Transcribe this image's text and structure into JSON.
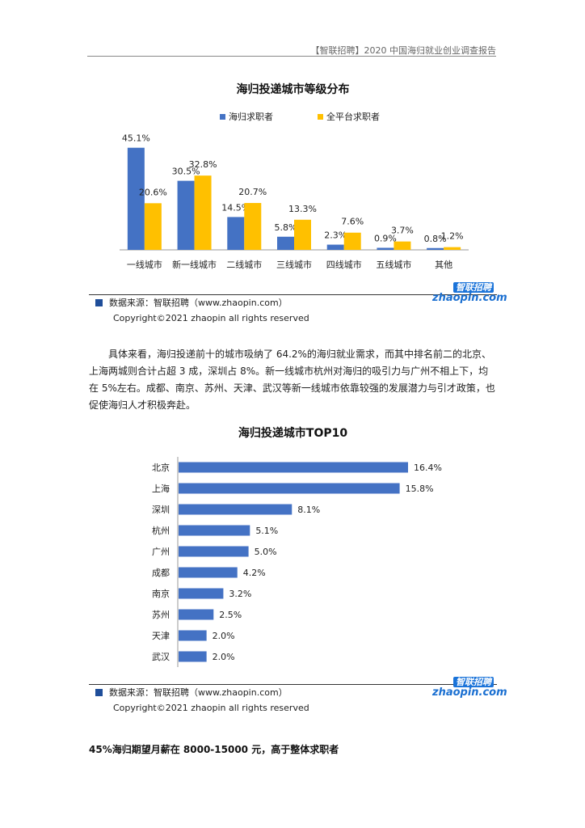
{
  "header": {
    "text": "【智联招聘】2020 中国海归就业创业调查报告"
  },
  "colors": {
    "blue": "#4472c4",
    "yellow": "#ffc000",
    "source_square": "#1f4e9a",
    "logo_blue": "#1a6fd1"
  },
  "chart_data": [
    {
      "type": "bar",
      "title": "海归投递城市等级分布",
      "categories": [
        "一线城市",
        "新一线城市",
        "二线城市",
        "三线城市",
        "四线城市",
        "五线城市",
        "其他"
      ],
      "series": [
        {
          "name": "海归求职者",
          "values": [
            45.1,
            30.5,
            14.5,
            5.8,
            2.3,
            0.9,
            0.8
          ],
          "labels": [
            "45.1%",
            "30.5%",
            "14.5%",
            "5.8%",
            "2.3%",
            "0.9%",
            "0.8%"
          ],
          "color": "#4472c4"
        },
        {
          "name": "全平台求职者",
          "values": [
            20.6,
            32.8,
            20.7,
            13.3,
            7.6,
            3.7,
            1.2
          ],
          "labels": [
            "20.6%",
            "32.8%",
            "20.7%",
            "13.3%",
            "7.6%",
            "3.7%",
            "1.2%"
          ],
          "color": "#ffc000"
        }
      ],
      "legend": "top",
      "ylim": [
        0,
        50
      ],
      "grid": false
    },
    {
      "type": "bar",
      "orientation": "horizontal",
      "title": "海归投递城市TOP10",
      "categories": [
        "北京",
        "上海",
        "深圳",
        "杭州",
        "广州",
        "成都",
        "南京",
        "苏州",
        "天津",
        "武汉"
      ],
      "values": [
        16.4,
        15.8,
        8.1,
        5.1,
        5.0,
        4.2,
        3.2,
        2.5,
        2.0,
        2.0
      ],
      "labels": [
        "16.4%",
        "15.8%",
        "8.1%",
        "5.1%",
        "5.0%",
        "4.2%",
        "3.2%",
        "2.5%",
        "2.0%",
        "2.0%"
      ],
      "color": "#4472c4",
      "xlim": [
        0,
        16.4
      ],
      "grid": false
    }
  ],
  "source": {
    "text": "数据来源：智联招聘（www.zhaopin.com）"
  },
  "copyright": {
    "text": "Copyright©2021 zhaopin all rights reserved"
  },
  "logo": {
    "cn": "智联招聘",
    "en": "zhaopin.com"
  },
  "paragraph": {
    "text": "具体来看，海归投递前十的城市吸纳了 64.2%的海归就业需求，而其中排名前二的北京、上海两城则合计占超 3 成，深圳占 8%。新一线城市杭州对海归的吸引力与广州不相上下，均在 5%左右。成都、南京、苏州、天津、武汉等新一线城市依靠较强的发展潜力与引才政策，也促使海归人才积极奔赴。"
  },
  "section_heading": {
    "text": "45%海归期望月薪在 8000-15000 元，高于整体求职者"
  }
}
